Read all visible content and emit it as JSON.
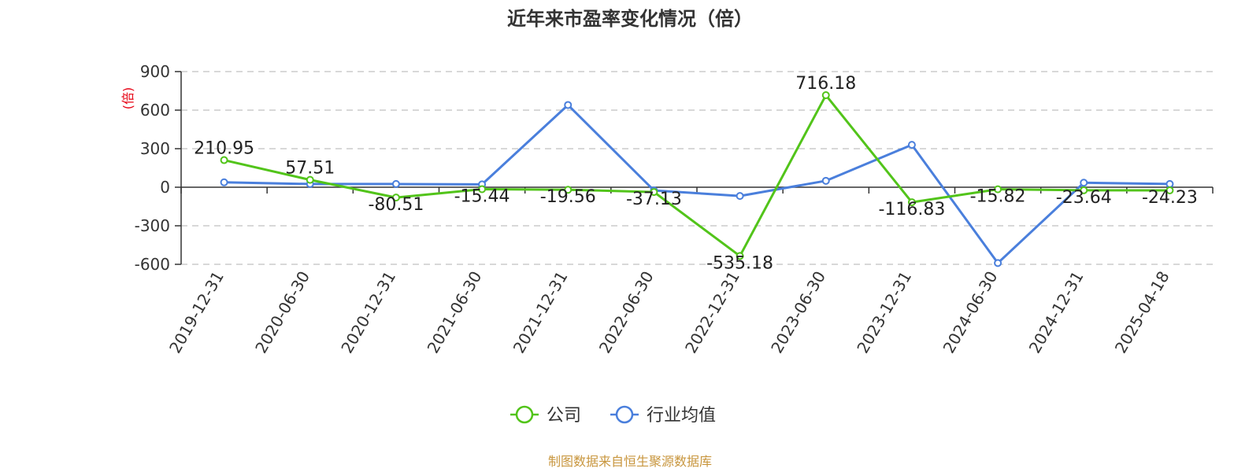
{
  "chart_data": {
    "type": "line",
    "title": "近年来市盈率变化情况（倍）",
    "ylabel": "(倍)",
    "xlabel": "",
    "ylim": [
      -600,
      900
    ],
    "yticks": [
      900,
      600,
      300,
      0,
      -300,
      -600
    ],
    "grid": true,
    "legend_position": "bottom-center",
    "categories": [
      "2019-12-31",
      "2020-06-30",
      "2020-12-31",
      "2021-06-30",
      "2021-12-31",
      "2022-06-30",
      "2022-12-31",
      "2023-06-30",
      "2023-12-31",
      "2024-06-30",
      "2024-12-31",
      "2025-04-18"
    ],
    "series": [
      {
        "name": "公司",
        "color": "#52c41a",
        "values": [
          210.95,
          57.51,
          -80.51,
          -15.44,
          -19.56,
          -37.13,
          -535.18,
          716.18,
          -116.83,
          -15.82,
          -23.64,
          -24.23
        ],
        "labels": [
          "210.95",
          "57.51",
          "-80.51",
          "-15.44",
          "-19.56",
          "-37.13",
          "-535.18",
          "716.18",
          "-116.83",
          "-15.82",
          "-23.64",
          "-24.23"
        ]
      },
      {
        "name": "行业均值",
        "color": "#4a7fdc",
        "values": [
          38,
          25,
          25,
          22,
          640,
          -25,
          -68,
          50,
          330,
          -590,
          35,
          25
        ]
      }
    ],
    "source": "制图数据来自恒生聚源数据库"
  }
}
